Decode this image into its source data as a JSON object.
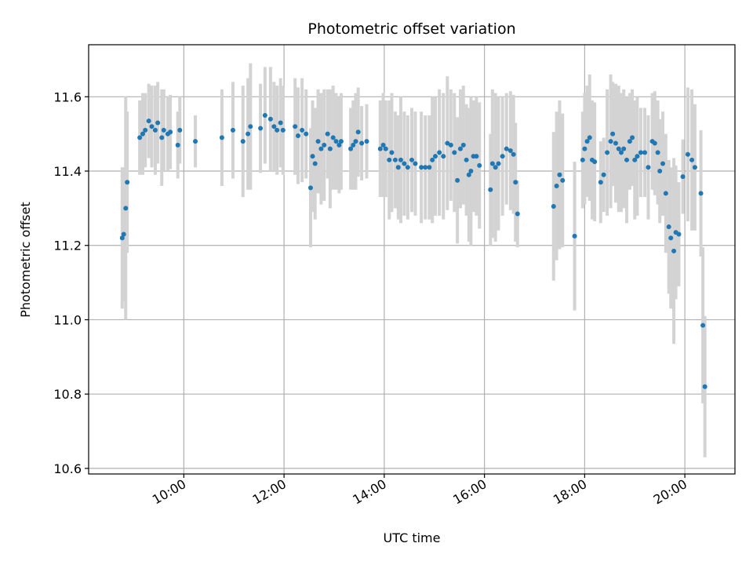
{
  "chart_data": {
    "type": "scatter",
    "title": "Photometric offset variation",
    "xlabel": "UTC time",
    "ylabel": "Photometric offset",
    "x_unit": "hours UTC",
    "xlim": [
      8.1,
      21.0
    ],
    "ylim": [
      10.585,
      11.74
    ],
    "x_ticks": [
      {
        "value": 10,
        "label": "10:00"
      },
      {
        "value": 12,
        "label": "12:00"
      },
      {
        "value": 14,
        "label": "14:00"
      },
      {
        "value": 16,
        "label": "16:00"
      },
      {
        "value": 18,
        "label": "18:00"
      },
      {
        "value": 20,
        "label": "20:00"
      }
    ],
    "y_ticks": [
      {
        "value": 10.6,
        "label": "10.6"
      },
      {
        "value": 10.8,
        "label": "10.8"
      },
      {
        "value": 11.0,
        "label": "11.0"
      },
      {
        "value": 11.2,
        "label": "11.2"
      },
      {
        "value": 11.4,
        "label": "11.4"
      },
      {
        "value": 11.6,
        "label": "11.6"
      }
    ],
    "grid": true,
    "point_color": "#1f77b4",
    "errorbar_color": "#d3d3d3",
    "points": [
      [
        8.77,
        11.22,
        0.19
      ],
      [
        8.8,
        11.23,
        0.18
      ],
      [
        8.84,
        11.3,
        0.3
      ],
      [
        8.87,
        11.37,
        0.19
      ],
      [
        9.12,
        11.49,
        0.1
      ],
      [
        9.18,
        11.5,
        0.11
      ],
      [
        9.23,
        11.51,
        0.1
      ],
      [
        9.3,
        11.535,
        0.1
      ],
      [
        9.36,
        11.52,
        0.11
      ],
      [
        9.43,
        11.51,
        0.12
      ],
      [
        9.48,
        11.53,
        0.11
      ],
      [
        9.56,
        11.49,
        0.13
      ],
      [
        9.6,
        11.51,
        0.11
      ],
      [
        9.68,
        11.5,
        0.1
      ],
      [
        9.73,
        11.505,
        0.1
      ],
      [
        9.88,
        11.47,
        0.09
      ],
      [
        9.92,
        11.51,
        0.09
      ],
      [
        10.23,
        11.48,
        0.07
      ],
      [
        10.76,
        11.49,
        0.13
      ],
      [
        10.98,
        11.51,
        0.13
      ],
      [
        11.18,
        11.48,
        0.15
      ],
      [
        11.28,
        11.5,
        0.15
      ],
      [
        11.33,
        11.52,
        0.17
      ],
      [
        11.53,
        11.515,
        0.12
      ],
      [
        11.62,
        11.55,
        0.13
      ],
      [
        11.73,
        11.54,
        0.14
      ],
      [
        11.8,
        11.52,
        0.12
      ],
      [
        11.86,
        11.51,
        0.12
      ],
      [
        11.93,
        11.53,
        0.12
      ],
      [
        11.98,
        11.51,
        0.12
      ],
      [
        12.22,
        11.52,
        0.13
      ],
      [
        12.28,
        11.495,
        0.13
      ],
      [
        12.36,
        11.51,
        0.14
      ],
      [
        12.44,
        11.5,
        0.12
      ],
      [
        12.53,
        11.355,
        0.16
      ],
      [
        12.57,
        11.44,
        0.15
      ],
      [
        12.62,
        11.42,
        0.15
      ],
      [
        12.68,
        11.48,
        0.14
      ],
      [
        12.74,
        11.46,
        0.15
      ],
      [
        12.8,
        11.47,
        0.15
      ],
      [
        12.87,
        11.5,
        0.12
      ],
      [
        12.92,
        11.46,
        0.16
      ],
      [
        12.98,
        11.49,
        0.14
      ],
      [
        13.04,
        11.48,
        0.13
      ],
      [
        13.1,
        11.47,
        0.13
      ],
      [
        13.14,
        11.48,
        0.13
      ],
      [
        13.33,
        11.46,
        0.11
      ],
      [
        13.38,
        11.47,
        0.12
      ],
      [
        13.43,
        11.48,
        0.13
      ],
      [
        13.48,
        11.505,
        0.12
      ],
      [
        13.55,
        11.475,
        0.1
      ],
      [
        13.65,
        11.48,
        0.1
      ],
      [
        13.92,
        11.46,
        0.13
      ],
      [
        13.98,
        11.47,
        0.14
      ],
      [
        14.03,
        11.46,
        0.13
      ],
      [
        14.1,
        11.43,
        0.16
      ],
      [
        14.15,
        11.45,
        0.16
      ],
      [
        14.22,
        11.43,
        0.13
      ],
      [
        14.28,
        11.41,
        0.14
      ],
      [
        14.33,
        11.43,
        0.17
      ],
      [
        14.4,
        11.42,
        0.14
      ],
      [
        14.47,
        11.41,
        0.14
      ],
      [
        14.55,
        11.43,
        0.14
      ],
      [
        14.62,
        11.42,
        0.14
      ],
      [
        14.74,
        11.41,
        0.15
      ],
      [
        14.82,
        11.41,
        0.14
      ],
      [
        14.9,
        11.41,
        0.14
      ],
      [
        14.96,
        11.43,
        0.17
      ],
      [
        15.02,
        11.44,
        0.16
      ],
      [
        15.1,
        11.45,
        0.17
      ],
      [
        15.18,
        11.44,
        0.17
      ],
      [
        15.26,
        11.475,
        0.18
      ],
      [
        15.33,
        11.47,
        0.15
      ],
      [
        15.4,
        11.45,
        0.16
      ],
      [
        15.46,
        11.375,
        0.17
      ],
      [
        15.52,
        11.46,
        0.16
      ],
      [
        15.58,
        11.47,
        0.16
      ],
      [
        15.64,
        11.43,
        0.15
      ],
      [
        15.69,
        11.39,
        0.18
      ],
      [
        15.73,
        11.4,
        0.2
      ],
      [
        15.78,
        11.44,
        0.15
      ],
      [
        15.84,
        11.44,
        0.16
      ],
      [
        15.9,
        11.415,
        0.17
      ],
      [
        16.12,
        11.35,
        0.15
      ],
      [
        16.16,
        11.42,
        0.2
      ],
      [
        16.22,
        11.41,
        0.2
      ],
      [
        16.28,
        11.42,
        0.18
      ],
      [
        16.36,
        11.44,
        0.16
      ],
      [
        16.44,
        11.46,
        0.15
      ],
      [
        16.52,
        11.455,
        0.16
      ],
      [
        16.58,
        11.445,
        0.16
      ],
      [
        16.62,
        11.37,
        0.16
      ],
      [
        16.66,
        11.285,
        0.09
      ],
      [
        17.38,
        11.305,
        0.2
      ],
      [
        17.44,
        11.36,
        0.2
      ],
      [
        17.5,
        11.39,
        0.2
      ],
      [
        17.56,
        11.375,
        0.18
      ],
      [
        17.8,
        11.225,
        0.2
      ],
      [
        17.96,
        11.43,
        0.13
      ],
      [
        18.0,
        11.46,
        0.15
      ],
      [
        18.05,
        11.48,
        0.15
      ],
      [
        18.1,
        11.49,
        0.17
      ],
      [
        18.15,
        11.43,
        0.16
      ],
      [
        18.2,
        11.425,
        0.16
      ],
      [
        18.32,
        11.37,
        0.11
      ],
      [
        18.38,
        11.39,
        0.1
      ],
      [
        18.45,
        11.45,
        0.17
      ],
      [
        18.52,
        11.48,
        0.18
      ],
      [
        18.56,
        11.5,
        0.14
      ],
      [
        18.62,
        11.475,
        0.16
      ],
      [
        18.68,
        11.46,
        0.17
      ],
      [
        18.73,
        11.45,
        0.16
      ],
      [
        18.78,
        11.46,
        0.16
      ],
      [
        18.84,
        11.43,
        0.17
      ],
      [
        18.9,
        11.48,
        0.13
      ],
      [
        18.95,
        11.49,
        0.13
      ],
      [
        19.0,
        11.43,
        0.16
      ],
      [
        19.05,
        11.44,
        0.16
      ],
      [
        19.12,
        11.45,
        0.12
      ],
      [
        19.2,
        11.45,
        0.12
      ],
      [
        19.27,
        11.41,
        0.14
      ],
      [
        19.35,
        11.48,
        0.13
      ],
      [
        19.4,
        11.475,
        0.14
      ],
      [
        19.46,
        11.45,
        0.14
      ],
      [
        19.5,
        11.4,
        0.14
      ],
      [
        19.56,
        11.42,
        0.14
      ],
      [
        19.62,
        11.34,
        0.16
      ],
      [
        19.68,
        11.25,
        0.18
      ],
      [
        19.72,
        11.22,
        0.19
      ],
      [
        19.78,
        11.185,
        0.25
      ],
      [
        19.82,
        11.235,
        0.18
      ],
      [
        19.88,
        11.23,
        0.14
      ],
      [
        19.96,
        11.385,
        0.1
      ],
      [
        20.06,
        11.445,
        0.18
      ],
      [
        20.14,
        11.43,
        0.19
      ],
      [
        20.2,
        11.41,
        0.17
      ],
      [
        20.32,
        11.34,
        0.17
      ],
      [
        20.36,
        10.985,
        0.21
      ],
      [
        20.4,
        10.82,
        0.19
      ]
    ]
  }
}
